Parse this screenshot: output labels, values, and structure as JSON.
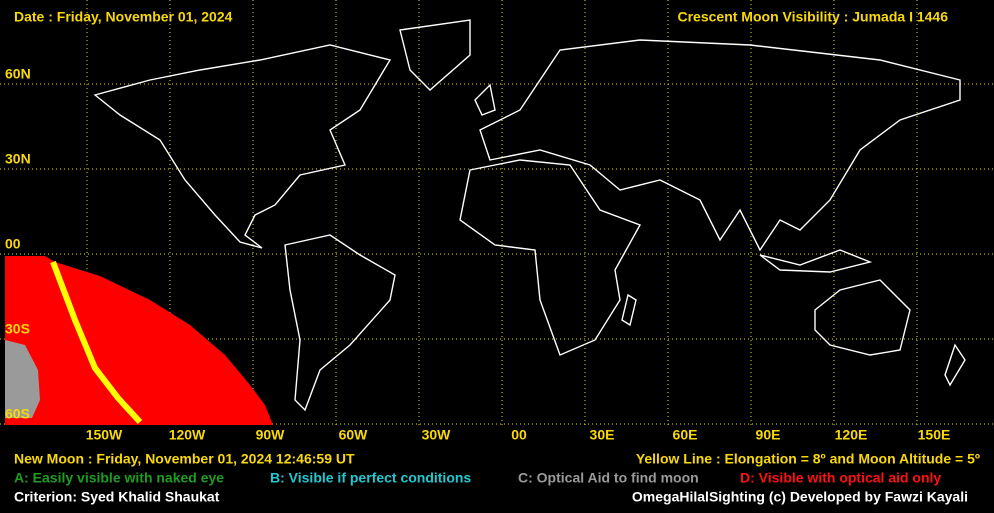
{
  "header": {
    "date": "Date : Friday, November 01, 2024",
    "title": "Crescent Moon Visibility : Jumada I  1446"
  },
  "map": {
    "lat_labels": [
      "60N",
      "30N",
      "00",
      "30S",
      "60S"
    ],
    "lon_labels": [
      "150W",
      "120W",
      "90W",
      "60W",
      "30W",
      "00",
      "30E",
      "60E",
      "90E",
      "120E",
      "150E"
    ]
  },
  "footer": {
    "new_moon": "New Moon : Friday, November 01, 2024  12:46:59  UT",
    "yellow_line": "Yellow Line : Elongation = 8º  and Moon Altitude = 5º",
    "legend": [
      {
        "text": "A: Easily visible with naked eye",
        "color": "#1e9e1e"
      },
      {
        "text": "B: Visible if perfect conditions",
        "color": "#22c8d0"
      },
      {
        "text": "C: Optical Aid to find moon",
        "color": "#9a9a9a"
      },
      {
        "text": "D: Visible with optical aid only",
        "color": "#ff1010"
      }
    ],
    "criterion": "Criterion: Syed Khalid Shaukat",
    "credit": "OmegaHilalSighting  (c)  Developed by Fawzi Kayali"
  }
}
